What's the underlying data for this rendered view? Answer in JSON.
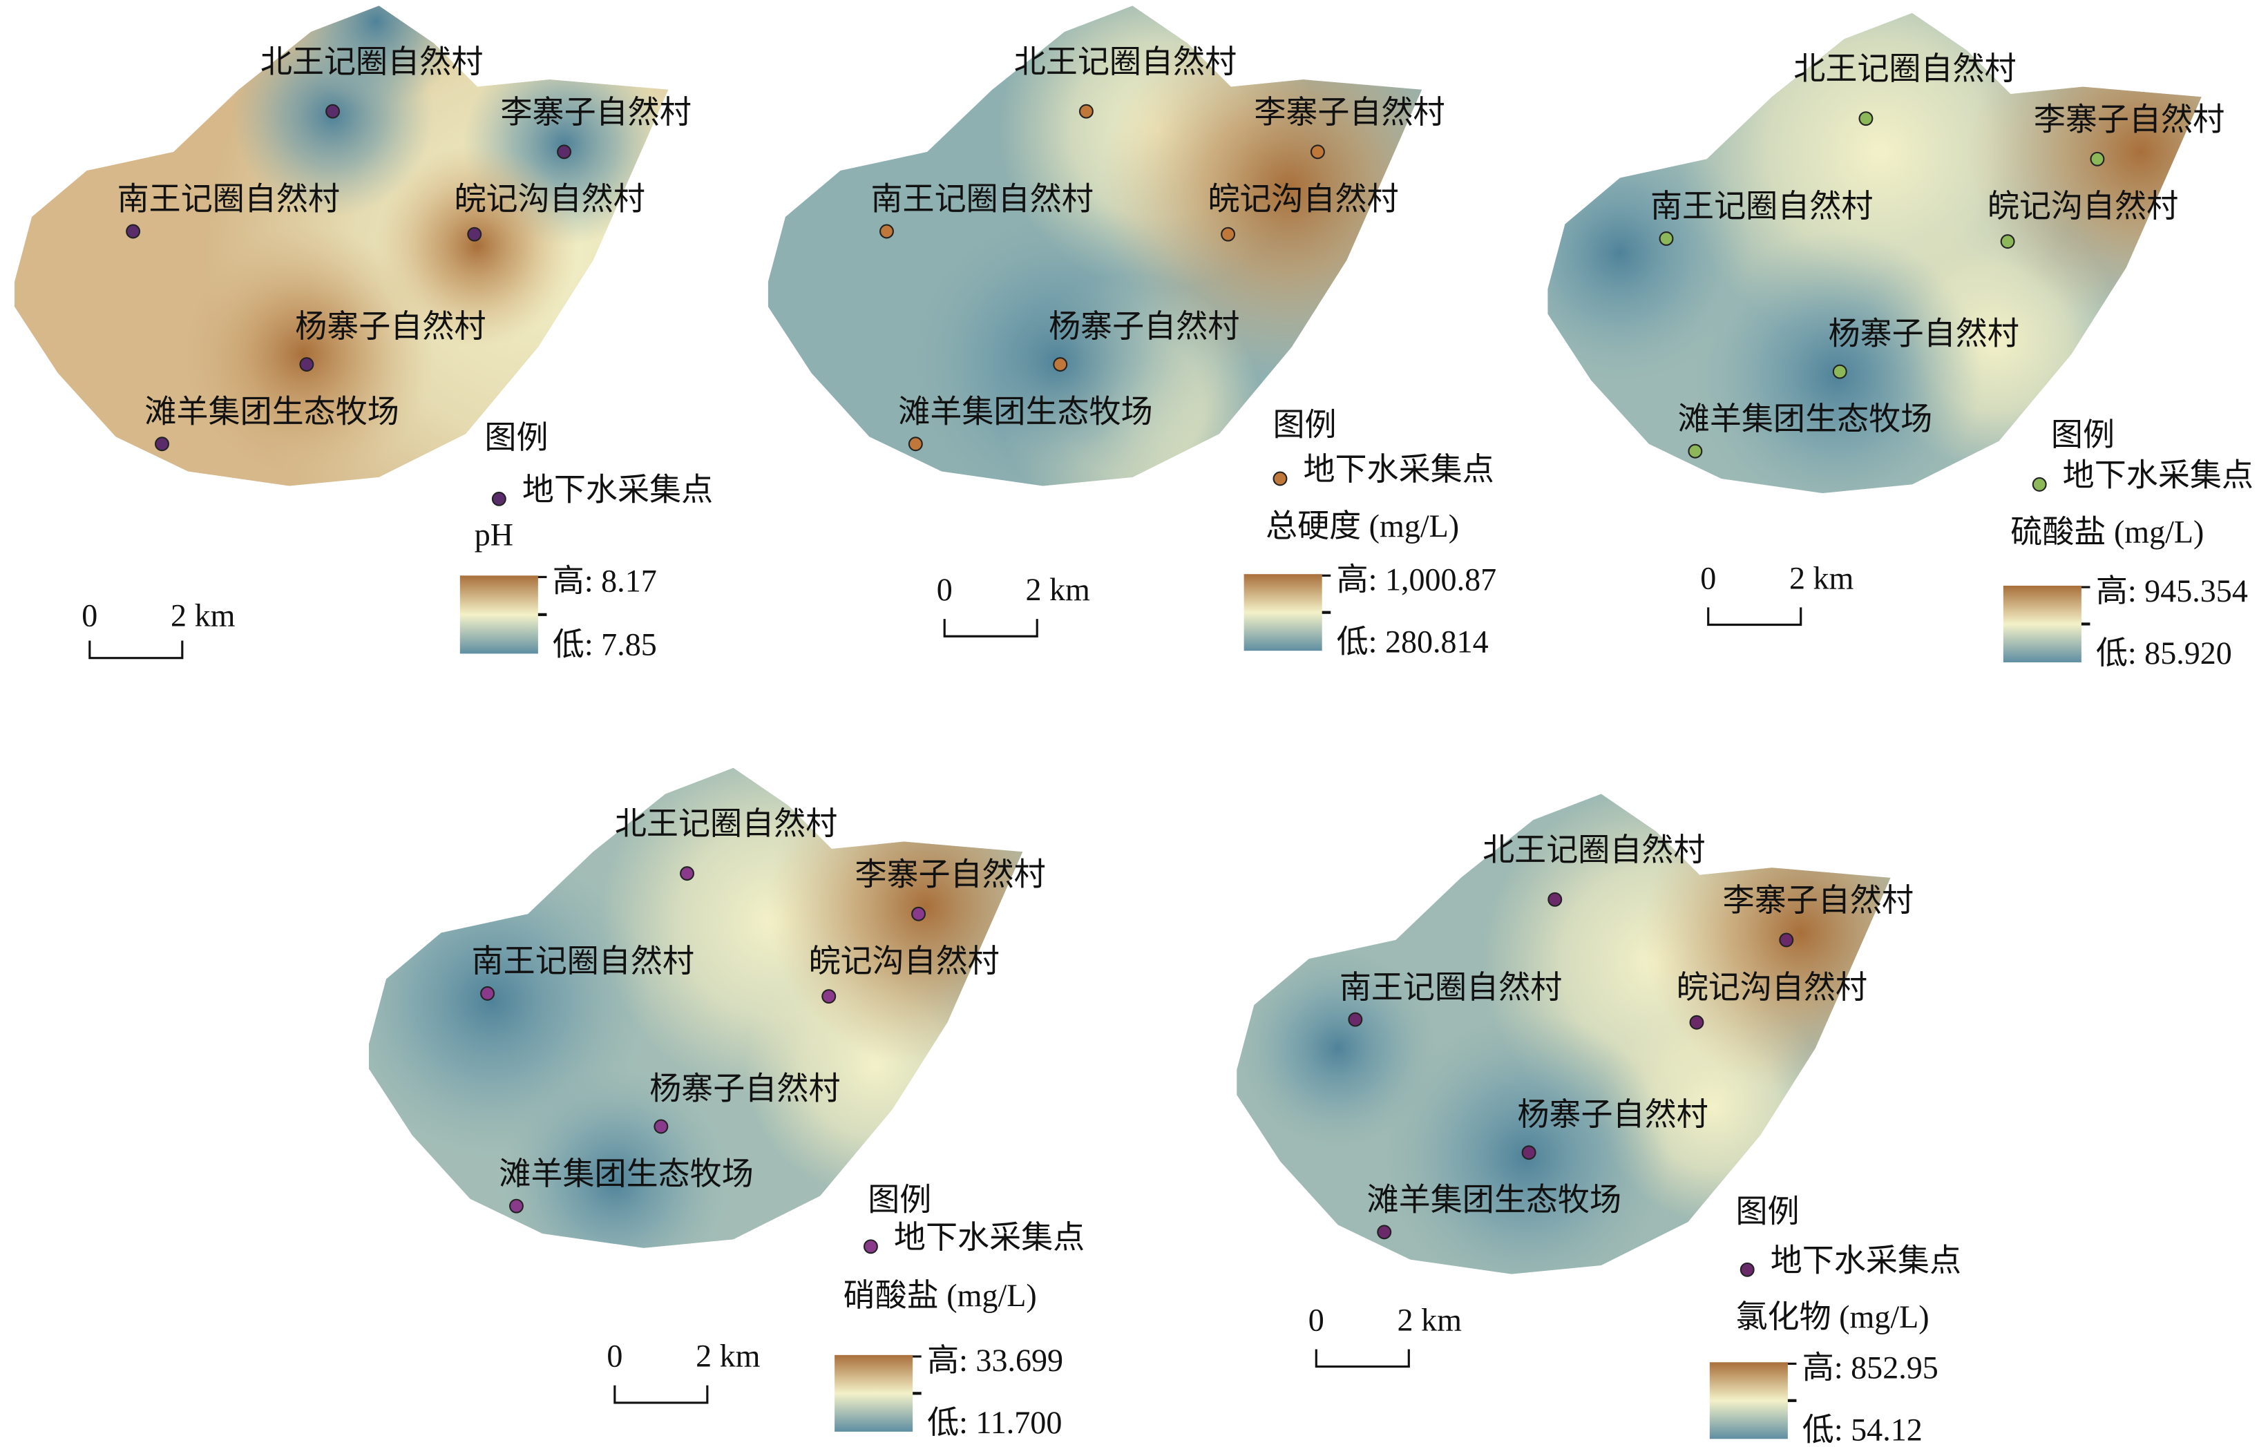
{
  "maps": [
    {
      "villages": [
        {
          "name": "北王记圈自然村"
        },
        {
          "name": "李寨子自然村"
        },
        {
          "name": "南王记圈自然村"
        },
        {
          "name": "皖记沟自然村"
        },
        {
          "name": "杨寨子自然村"
        },
        {
          "name": "滩羊集团生态牧场"
        }
      ],
      "legend_title": "图例",
      "legend_item": "地下水采集点",
      "variable": "pH",
      "high_label": "高: 8.17",
      "low_label": "低: 7.85",
      "scale_zero": "0",
      "scale_distance": "2 km"
    },
    {
      "villages": [
        {
          "name": "北王记圈自然村"
        },
        {
          "name": "李寨子自然村"
        },
        {
          "name": "南王记圈自然村"
        },
        {
          "name": "皖记沟自然村"
        },
        {
          "name": "杨寨子自然村"
        },
        {
          "name": "滩羊集团生态牧场"
        }
      ],
      "legend_title": "图例",
      "legend_item": "地下水采集点",
      "variable": "总硬度 (mg/L)",
      "high_label": "高: 1,000.87",
      "low_label": "低: 280.814",
      "scale_zero": "0",
      "scale_distance": "2 km"
    },
    {
      "villages": [
        {
          "name": "北王记圈自然村"
        },
        {
          "name": "李寨子自然村"
        },
        {
          "name": "南王记圈自然村"
        },
        {
          "name": "皖记沟自然村"
        },
        {
          "name": "杨寨子自然村"
        },
        {
          "name": "滩羊集团生态牧场"
        }
      ],
      "legend_title": "图例",
      "legend_item": "地下水采集点",
      "variable": "硫酸盐 (mg/L)",
      "high_label": "高: 945.354",
      "low_label": "低: 85.920",
      "scale_zero": "0",
      "scale_distance": "2 km"
    },
    {
      "villages": [
        {
          "name": "北王记圈自然村"
        },
        {
          "name": "李寨子自然村"
        },
        {
          "name": "南王记圈自然村"
        },
        {
          "name": "皖记沟自然村"
        },
        {
          "name": "杨寨子自然村"
        },
        {
          "name": "滩羊集团生态牧场"
        }
      ],
      "legend_title": "图例",
      "legend_item": "地下水采集点",
      "variable": "硝酸盐 (mg/L)",
      "high_label": "高: 33.699",
      "low_label": "低: 11.700",
      "scale_zero": "0",
      "scale_distance": "2 km"
    },
    {
      "villages": [
        {
          "name": "北王记圈自然村"
        },
        {
          "name": "李寨子自然村"
        },
        {
          "name": "南王记圈自然村"
        },
        {
          "name": "皖记沟自然村"
        },
        {
          "name": "杨寨子自然村"
        },
        {
          "name": "滩羊集团生态牧场"
        }
      ],
      "legend_title": "图例",
      "legend_item": "地下水采集点",
      "variable": "氯化物 (mg/L)",
      "high_label": "高: 852.95",
      "low_label": "低: 54.12",
      "scale_zero": "0",
      "scale_distance": "2 km"
    }
  ]
}
